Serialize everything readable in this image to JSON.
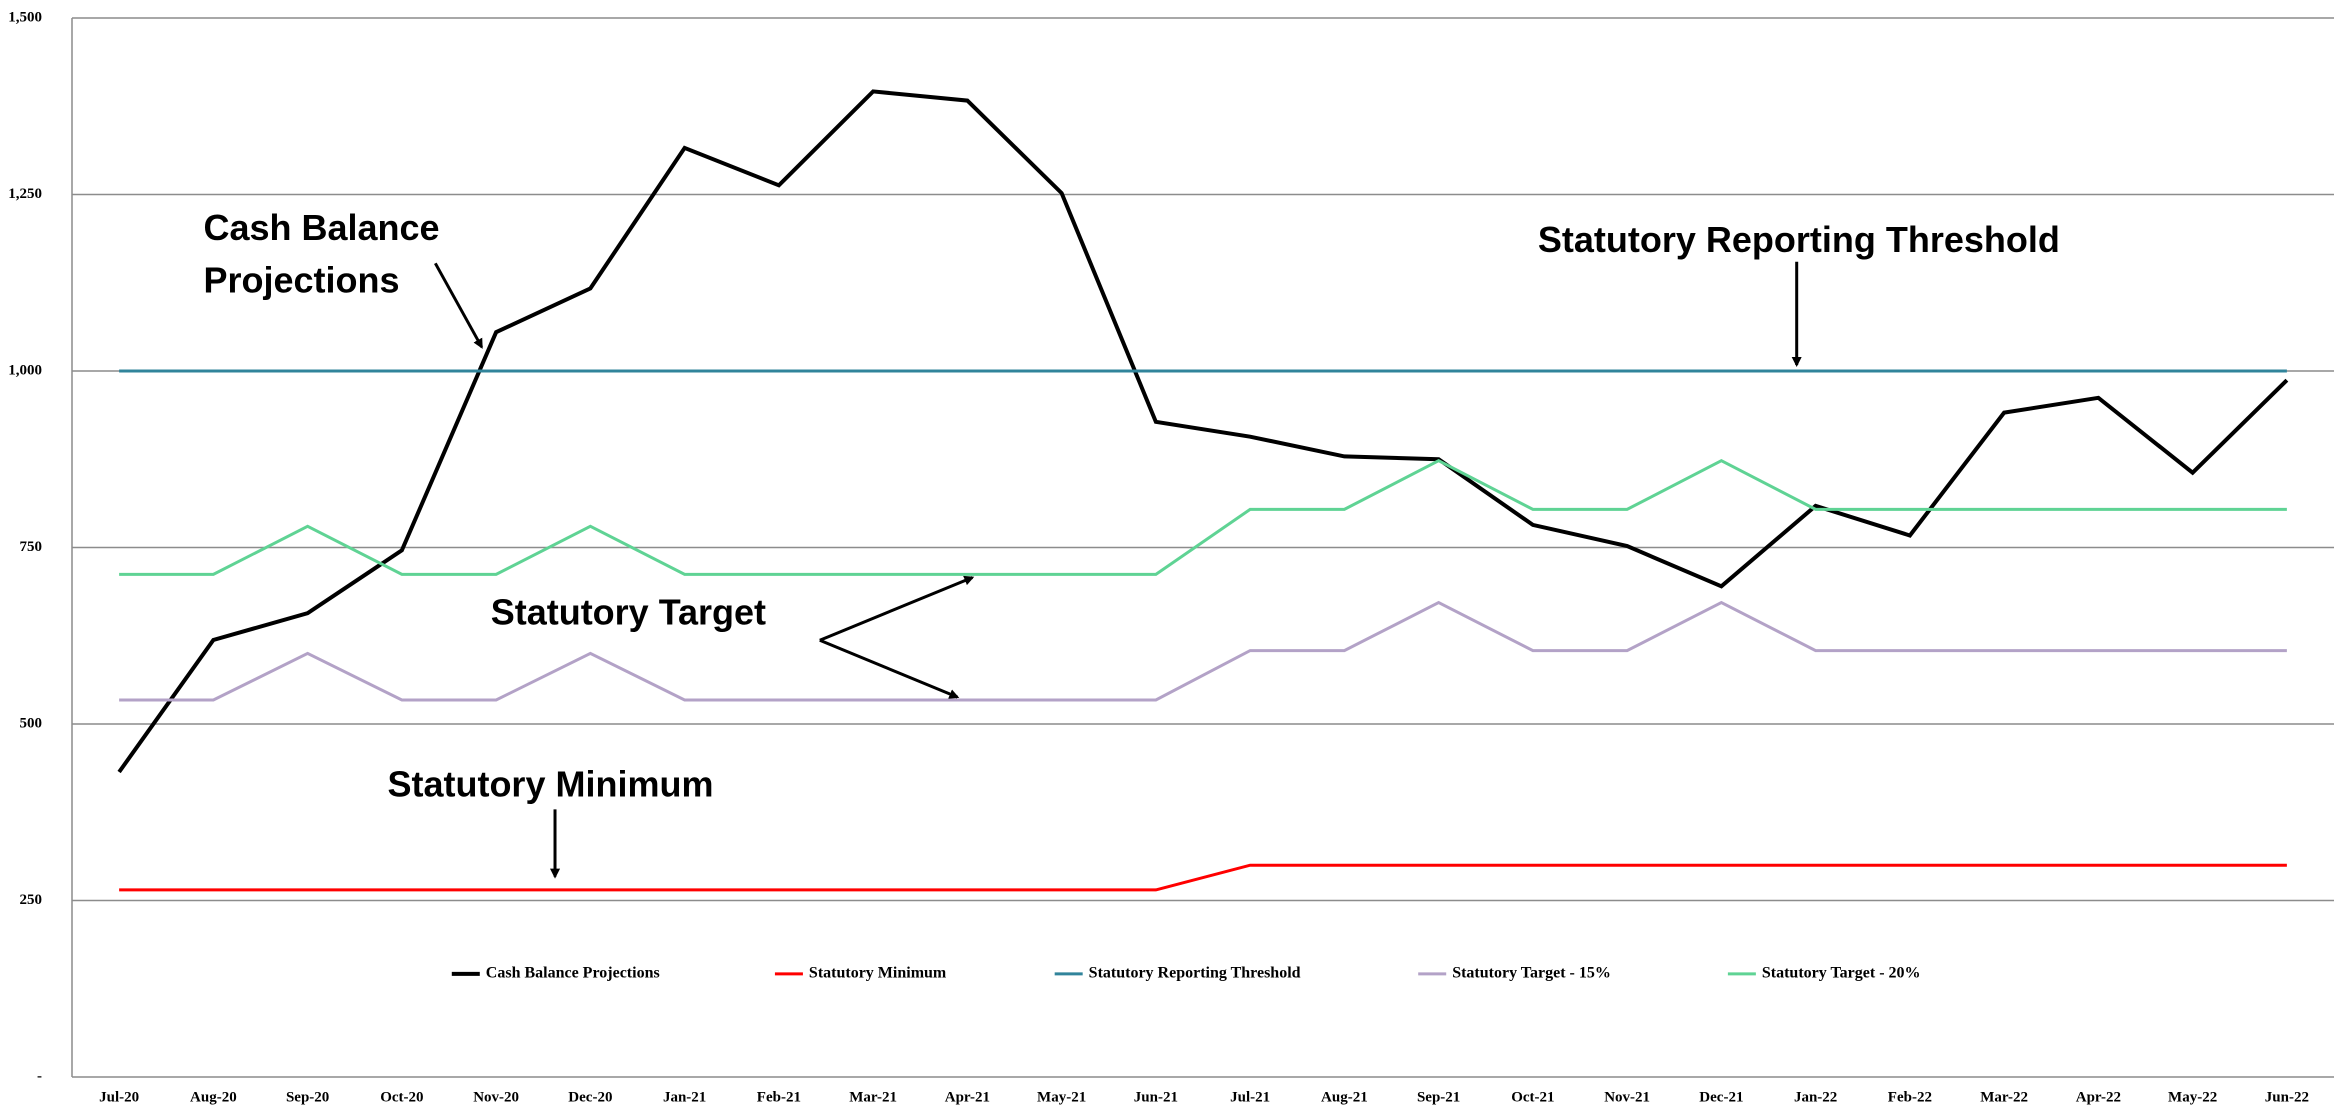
{
  "chart_data": {
    "type": "line",
    "categories": [
      "Jul-20",
      "Aug-20",
      "Sep-20",
      "Oct-20",
      "Nov-20",
      "Dec-20",
      "Jan-21",
      "Feb-21",
      "Mar-21",
      "Apr-21",
      "May-21",
      "Jun-21",
      "Jul-21",
      "Aug-21",
      "Sep-21",
      "Oct-21",
      "Nov-21",
      "Dec-21",
      "Jan-22",
      "Feb-22",
      "Mar-22",
      "Apr-22",
      "May-22",
      "Jun-22"
    ],
    "series": [
      {
        "name": "Cash Balance Projections",
        "color": "#000000",
        "values": [
          432,
          619,
          657,
          746,
          1055,
          1117,
          1316,
          1263,
          1396,
          1383,
          1252,
          928,
          907,
          879,
          875,
          782,
          752,
          695,
          809,
          767,
          941,
          962,
          856,
          987
        ]
      },
      {
        "name": "Statutory Minimum",
        "color": "#ff0000",
        "values": [
          265,
          265,
          265,
          265,
          265,
          265,
          265,
          265,
          265,
          265,
          265,
          265,
          300,
          300,
          300,
          300,
          300,
          300,
          300,
          300,
          300,
          300,
          300,
          300
        ]
      },
      {
        "name": "Statutory Reporting Threshold",
        "color": "#31849b",
        "values": [
          1000,
          1000,
          1000,
          1000,
          1000,
          1000,
          1000,
          1000,
          1000,
          1000,
          1000,
          1000,
          1000,
          1000,
          1000,
          1000,
          1000,
          1000,
          1000,
          1000,
          1000,
          1000,
          1000,
          1000
        ]
      },
      {
        "name": "Statutory Target - 15%",
        "color": "#b3a2c7",
        "values": [
          534,
          534,
          600,
          534,
          534,
          600,
          534,
          534,
          534,
          534,
          534,
          534,
          604,
          604,
          672,
          604,
          604,
          672,
          604,
          604,
          604,
          604,
          604,
          604
        ]
      },
      {
        "name": "Statutory Target - 20%",
        "color": "#5fd394",
        "values": [
          712,
          712,
          780,
          712,
          712,
          780,
          712,
          712,
          712,
          712,
          712,
          712,
          804,
          804,
          873,
          804,
          804,
          873,
          804,
          804,
          804,
          804,
          804,
          804
        ]
      }
    ],
    "ylim": [
      0,
      1500
    ],
    "yticks": [
      {
        "value": 0,
        "label": "-"
      },
      250,
      500,
      750,
      {
        "value": 1000,
        "label": "1,000"
      },
      {
        "value": 1250,
        "label": "1,250"
      },
      {
        "value": 1500,
        "label": "1,500"
      }
    ],
    "grid": true,
    "annotations": [
      "Cash Balance",
      "Projections",
      "Statutory Reporting Threshold",
      "Statutory Target",
      "Statutory Minimum"
    ]
  }
}
